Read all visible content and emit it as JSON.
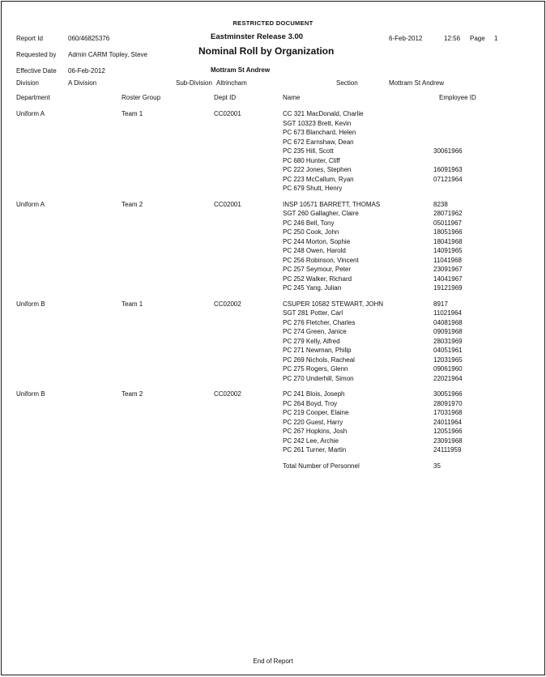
{
  "page": {
    "classification": "RESTRICTED DOCUMENT",
    "footer": "End of Report"
  },
  "header": {
    "report_id_label": "Report Id",
    "report_id": "060/46825376",
    "release_title": "Eastminster Release 3.00",
    "date": "6-Feb-2012",
    "time": "12:56",
    "page_label": "Page",
    "page_number": "1",
    "requested_by_label": "Requested by",
    "requested_by": "Admin CARM Topley, Steve",
    "report_title": "Nominal Roll by Organization",
    "effective_date_label": "Effective Date",
    "effective_date": "06-Feb-2012",
    "location_center": "Mottram St Andrew",
    "division_label": "Division",
    "division": "A Division",
    "sub_division_label": "Sub-Division",
    "sub_division": "Altrincham",
    "section_label": "Section",
    "section": "Mottram St Andrew"
  },
  "columns": {
    "department": "Department",
    "roster_group": "Roster Group",
    "dept_id": "Dept ID",
    "name": "Name",
    "employee_id": "Employee ID"
  },
  "groups": [
    {
      "department": "Uniform A",
      "roster_group": "Team 1",
      "dept_id": "CC02001",
      "rows": [
        {
          "name": "CC 321 MacDonald, Charlie",
          "employee_id": ""
        },
        {
          "name": "SGT 10323 Brett, Kevin",
          "employee_id": ""
        },
        {
          "name": "PC 673 Blanchard, Helen",
          "employee_id": ""
        },
        {
          "name": "PC 672 Earnshaw, Dean",
          "employee_id": ""
        },
        {
          "name": "PC 235 Hill, Scott",
          "employee_id": "30061966"
        },
        {
          "name": "PC 680 Hunter, Cliff",
          "employee_id": ""
        },
        {
          "name": "PC 222 Jones, Stephen",
          "employee_id": "16091963"
        },
        {
          "name": "PC 223 McCallum, Ryan",
          "employee_id": "07121964"
        },
        {
          "name": "PC 679 Shutt, Henry",
          "employee_id": ""
        }
      ]
    },
    {
      "department": "Uniform A",
      "roster_group": "Team 2",
      "dept_id": "CC02001",
      "rows": [
        {
          "name": "INSP 10571 BARRETT, THOMAS",
          "employee_id": "8238"
        },
        {
          "name": "SGT 260 Gallagher, Claire",
          "employee_id": "28071962"
        },
        {
          "name": "PC 246 Bell, Tony",
          "employee_id": "05011967"
        },
        {
          "name": "PC 250 Cook, John",
          "employee_id": "18051966"
        },
        {
          "name": "PC 244 Morton, Sophie",
          "employee_id": "18041968"
        },
        {
          "name": "PC 248 Owen, Harold",
          "employee_id": "14091965"
        },
        {
          "name": "PC 256 Robinson, Vincent",
          "employee_id": "11041968"
        },
        {
          "name": "PC 257 Seymour, Peter",
          "employee_id": "23091967"
        },
        {
          "name": "PC 252 Walker, Richard",
          "employee_id": "14041967"
        },
        {
          "name": "PC 245 Yang, Julian",
          "employee_id": "19121969"
        }
      ]
    },
    {
      "department": "Uniform B",
      "roster_group": "Team 1",
      "dept_id": "CC02002",
      "rows": [
        {
          "name": "CSUPER 10582 STEWART, JOHN",
          "employee_id": "8917"
        },
        {
          "name": "SGT 281 Potter, Carl",
          "employee_id": "11021964"
        },
        {
          "name": "PC 276 Fletcher, Charles",
          "employee_id": "04081968"
        },
        {
          "name": "PC 274 Green, Janice",
          "employee_id": "09091968"
        },
        {
          "name": "PC 279 Kelly, Alfred",
          "employee_id": "28031969"
        },
        {
          "name": "PC 271 Newman, Philip",
          "employee_id": "04051961"
        },
        {
          "name": "PC 269 Nichols, Racheal",
          "employee_id": "12031965"
        },
        {
          "name": "PC 275 Rogers, Glenn",
          "employee_id": "09061960"
        },
        {
          "name": "PC 270 Underhill, Simon",
          "employee_id": "22021964"
        }
      ]
    },
    {
      "department": "Uniform B",
      "roster_group": "Team 2",
      "dept_id": "CC02002",
      "rows": [
        {
          "name": "PC 241 Blois, Joseph",
          "employee_id": "30051966"
        },
        {
          "name": "PC 264 Boyd, Troy",
          "employee_id": "28091970"
        },
        {
          "name": "PC 219 Cooper, Elaine",
          "employee_id": "17031968"
        },
        {
          "name": "PC 220 Guest, Harry",
          "employee_id": "24011964"
        },
        {
          "name": "PC 267 Hopkins, Josh",
          "employee_id": "12051966"
        },
        {
          "name": "PC 242 Lee, Archie",
          "employee_id": "23091968"
        },
        {
          "name": "PC 261 Turner, Martin",
          "employee_id": "24111959"
        }
      ]
    }
  ],
  "total": {
    "label": "Total Number of Personnel",
    "value": "35"
  }
}
